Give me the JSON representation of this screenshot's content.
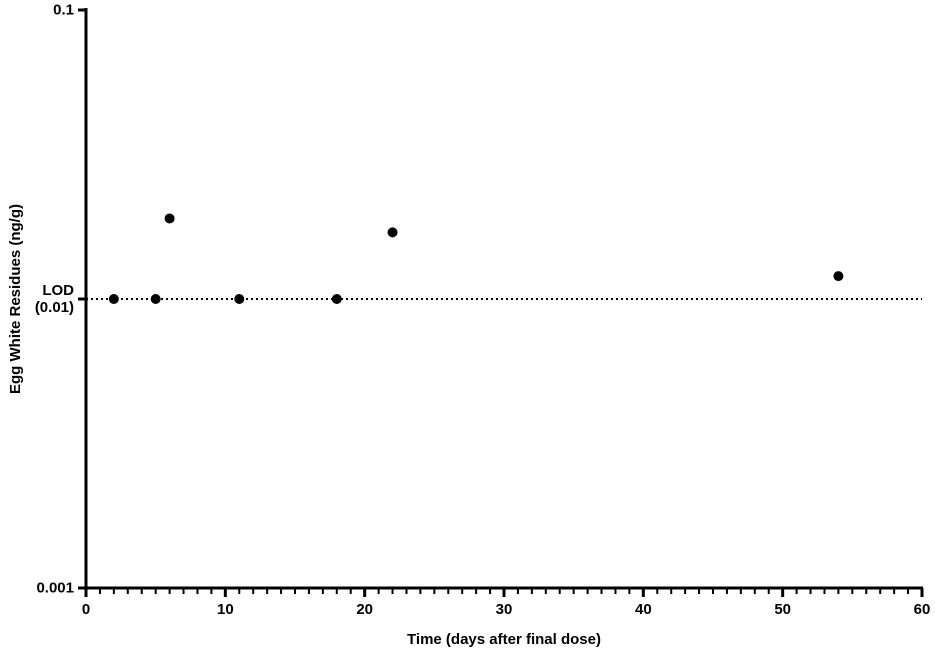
{
  "chart_data": {
    "type": "scatter",
    "x_label": "Time (days after final dose)",
    "y_label": "Egg White Residues (ng/g)",
    "x": [
      2,
      5,
      6,
      11,
      18,
      22,
      54
    ],
    "values": [
      0.01,
      0.01,
      0.019,
      0.01,
      0.01,
      0.017,
      0.012
    ],
    "color": "#000000",
    "xlim": [
      0,
      60
    ],
    "xticks": [
      0,
      10,
      20,
      30,
      40,
      50,
      60
    ],
    "ylim": [
      0.001,
      0.1
    ],
    "yscale": "log",
    "yticks": [
      0.001,
      {
        "value": 0.01,
        "label": "LOD (0.01)"
      },
      0.1
    ],
    "hline": 0.01,
    "hline_style": "dotted"
  }
}
